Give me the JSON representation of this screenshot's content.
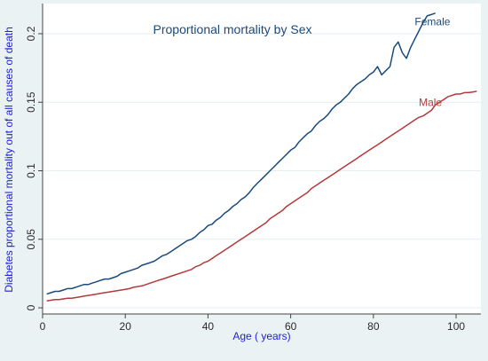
{
  "chart_data": {
    "type": "line",
    "title": "Proportional mortality by Sex",
    "xlabel": "Age ( years)",
    "ylabel": "Diabetes proportional mortality out of all causes of death",
    "xlim": [
      0,
      106
    ],
    "ylim": [
      -0.0045,
      0.222
    ],
    "x_ticks": [
      0,
      20,
      40,
      60,
      80,
      100
    ],
    "x_tick_labels": [
      "0",
      "20",
      "40",
      "60",
      "80",
      "100"
    ],
    "y_ticks": [
      0,
      0.05,
      0.1,
      0.15,
      0.2
    ],
    "y_tick_labels": [
      "0",
      "0.05",
      "0.1",
      "0.15",
      "0.2"
    ],
    "grid": "horizontal",
    "legend": "inline labels near line ends",
    "colors": {
      "background": "#eaf2f3",
      "plot_background": "#ffffff",
      "title": "#1a4a7a",
      "axis_label": "#1f1fd6",
      "tick_label": "#2a2a2a",
      "grid": "#e6eef0"
    },
    "series": [
      {
        "name": "Female",
        "color": "#1a4a7a",
        "x": [
          1,
          2,
          3,
          4,
          5,
          6,
          7,
          8,
          9,
          10,
          11,
          12,
          13,
          14,
          15,
          16,
          17,
          18,
          19,
          20,
          21,
          22,
          23,
          24,
          25,
          26,
          27,
          28,
          29,
          30,
          31,
          32,
          33,
          34,
          35,
          36,
          37,
          38,
          39,
          40,
          41,
          42,
          43,
          44,
          45,
          46,
          47,
          48,
          49,
          50,
          51,
          52,
          53,
          54,
          55,
          56,
          57,
          58,
          59,
          60,
          61,
          62,
          63,
          64,
          65,
          66,
          67,
          68,
          69,
          70,
          71,
          72,
          73,
          74,
          75,
          76,
          77,
          78,
          79,
          80,
          81,
          82,
          83,
          84,
          85,
          86,
          87,
          88,
          89,
          90,
          91,
          92,
          93,
          94,
          95
        ],
        "y": [
          0.01,
          0.011,
          0.012,
          0.012,
          0.013,
          0.014,
          0.014,
          0.015,
          0.016,
          0.017,
          0.017,
          0.018,
          0.019,
          0.02,
          0.021,
          0.021,
          0.022,
          0.023,
          0.025,
          0.026,
          0.027,
          0.028,
          0.029,
          0.031,
          0.032,
          0.033,
          0.034,
          0.036,
          0.038,
          0.039,
          0.041,
          0.043,
          0.045,
          0.047,
          0.049,
          0.05,
          0.052,
          0.055,
          0.057,
          0.06,
          0.061,
          0.064,
          0.066,
          0.069,
          0.071,
          0.074,
          0.076,
          0.079,
          0.081,
          0.084,
          0.088,
          0.091,
          0.094,
          0.097,
          0.1,
          0.103,
          0.106,
          0.109,
          0.112,
          0.115,
          0.117,
          0.121,
          0.124,
          0.127,
          0.129,
          0.133,
          0.136,
          0.138,
          0.141,
          0.145,
          0.148,
          0.15,
          0.153,
          0.156,
          0.16,
          0.163,
          0.165,
          0.167,
          0.17,
          0.172,
          0.176,
          0.17,
          0.173,
          0.176,
          0.19,
          0.194,
          0.186,
          0.182,
          0.19,
          0.196,
          0.202,
          0.208,
          0.213,
          0.214,
          0.215
        ]
      },
      {
        "name": "Male",
        "color": "#b23a3a",
        "x": [
          1,
          2,
          3,
          4,
          5,
          6,
          7,
          8,
          9,
          10,
          11,
          12,
          13,
          14,
          15,
          16,
          17,
          18,
          19,
          20,
          21,
          22,
          23,
          24,
          25,
          26,
          27,
          28,
          29,
          30,
          31,
          32,
          33,
          34,
          35,
          36,
          37,
          38,
          39,
          40,
          41,
          42,
          43,
          44,
          45,
          46,
          47,
          48,
          49,
          50,
          51,
          52,
          53,
          54,
          55,
          56,
          57,
          58,
          59,
          60,
          61,
          62,
          63,
          64,
          65,
          66,
          67,
          68,
          69,
          70,
          71,
          72,
          73,
          74,
          75,
          76,
          77,
          78,
          79,
          80,
          81,
          82,
          83,
          84,
          85,
          86,
          87,
          88,
          89,
          90,
          91,
          92,
          93,
          94,
          95,
          96,
          97,
          98,
          99,
          100,
          101,
          102,
          103,
          104,
          105
        ],
        "y": [
          0.005,
          0.0055,
          0.006,
          0.006,
          0.0065,
          0.007,
          0.007,
          0.0075,
          0.008,
          0.0085,
          0.009,
          0.0095,
          0.01,
          0.0105,
          0.011,
          0.0115,
          0.012,
          0.0125,
          0.013,
          0.0135,
          0.014,
          0.015,
          0.0155,
          0.016,
          0.017,
          0.018,
          0.019,
          0.02,
          0.021,
          0.022,
          0.023,
          0.024,
          0.025,
          0.026,
          0.027,
          0.028,
          0.03,
          0.031,
          0.033,
          0.034,
          0.036,
          0.038,
          0.04,
          0.042,
          0.044,
          0.046,
          0.048,
          0.05,
          0.052,
          0.054,
          0.056,
          0.058,
          0.06,
          0.062,
          0.065,
          0.067,
          0.069,
          0.071,
          0.074,
          0.076,
          0.078,
          0.08,
          0.082,
          0.084,
          0.087,
          0.089,
          0.091,
          0.093,
          0.095,
          0.097,
          0.099,
          0.101,
          0.103,
          0.105,
          0.107,
          0.109,
          0.111,
          0.113,
          0.115,
          0.117,
          0.119,
          0.121,
          0.123,
          0.125,
          0.127,
          0.129,
          0.131,
          0.133,
          0.135,
          0.137,
          0.139,
          0.14,
          0.142,
          0.144,
          0.148,
          0.15,
          0.152,
          0.154,
          0.155,
          0.156,
          0.156,
          0.157,
          0.157,
          0.1575,
          0.158
        ]
      }
    ]
  }
}
